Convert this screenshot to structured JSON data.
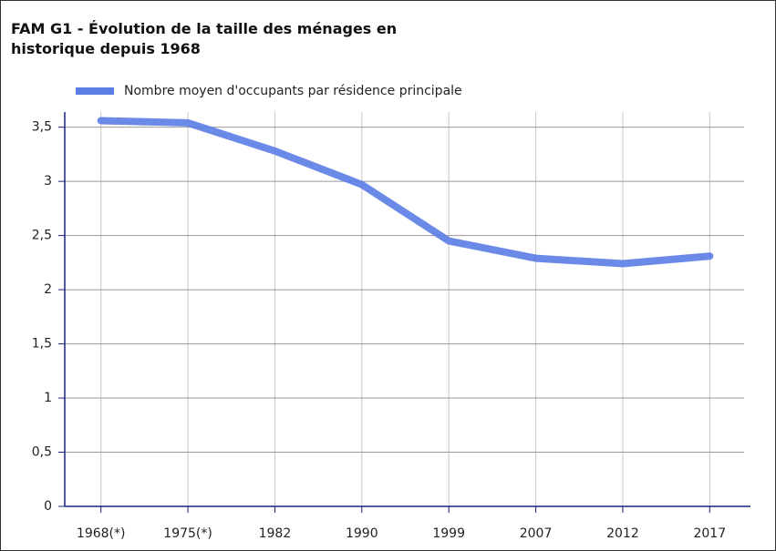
{
  "chart_data": {
    "type": "line",
    "title": "FAM G1 - Évolution de la taille des ménages en historique depuis 1968",
    "categories": [
      "1968(*)",
      "1975(*)",
      "1982",
      "1990",
      "1999",
      "2007",
      "2012",
      "2017"
    ],
    "series": [
      {
        "name": "Nombre moyen d'occupants par résidence principale",
        "color": "#5b7de6",
        "values": [
          3.56,
          3.54,
          3.28,
          2.97,
          2.45,
          2.29,
          2.24,
          2.31
        ]
      }
    ],
    "ylim": [
      0,
      3.64
    ],
    "yticks": [
      0,
      {
        "value": 0.5,
        "label": "0,5"
      },
      1,
      {
        "value": 1.5,
        "label": "1,5"
      },
      2,
      {
        "value": 2.5,
        "label": "2,5"
      },
      3,
      {
        "value": 3.5,
        "label": "3,5"
      }
    ],
    "grid": true,
    "legend": "top"
  }
}
